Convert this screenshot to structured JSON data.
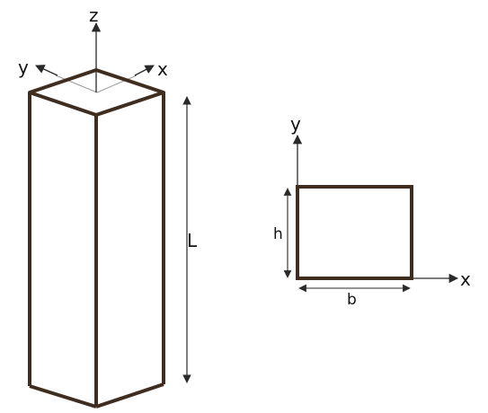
{
  "colors": {
    "beam_edge": "#3f2e1f",
    "axis": "#2a2a2a",
    "hidden_line": "#9a9a9a",
    "text": "#111111"
  },
  "beam_3d": {
    "axis_labels": {
      "z": "z",
      "y": "y",
      "x": "x"
    },
    "length_label": "L"
  },
  "cross_section": {
    "axis_labels": {
      "y": "y",
      "x": "x"
    },
    "height_label": "h",
    "width_label": "b"
  }
}
